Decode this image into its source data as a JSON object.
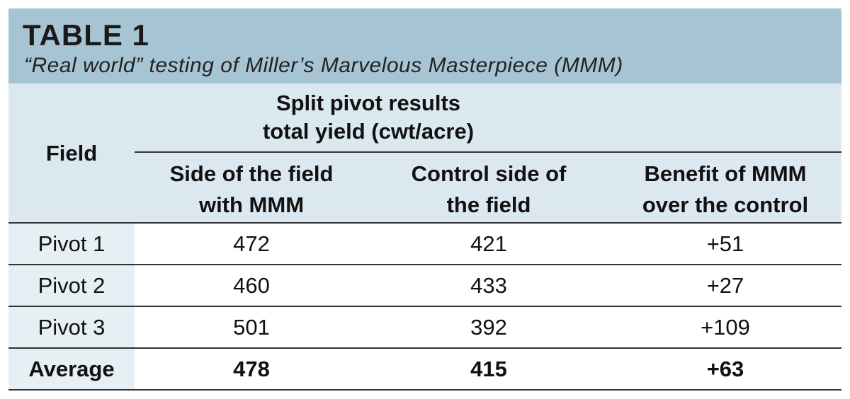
{
  "header": {
    "title": "TABLE 1",
    "subtitle": "“Real world” testing of Miller’s Marvelous Masterpiece (MMM)"
  },
  "table": {
    "field_header": "Field",
    "group_header": [
      "Split pivot results",
      "total yield (cwt/acre)"
    ],
    "columns": [
      [
        "Side of the field",
        "with MMM"
      ],
      [
        "Control side of",
        "the field"
      ],
      [
        "Benefit of MMM",
        "over the control"
      ]
    ],
    "rows": [
      [
        "Pivot 1",
        472,
        421,
        "+51"
      ],
      [
        "Pivot 2",
        460,
        433,
        "+27"
      ],
      [
        "Pivot 3",
        501,
        392,
        "+109"
      ]
    ],
    "average": [
      "Average",
      478,
      415,
      "+63"
    ]
  }
}
